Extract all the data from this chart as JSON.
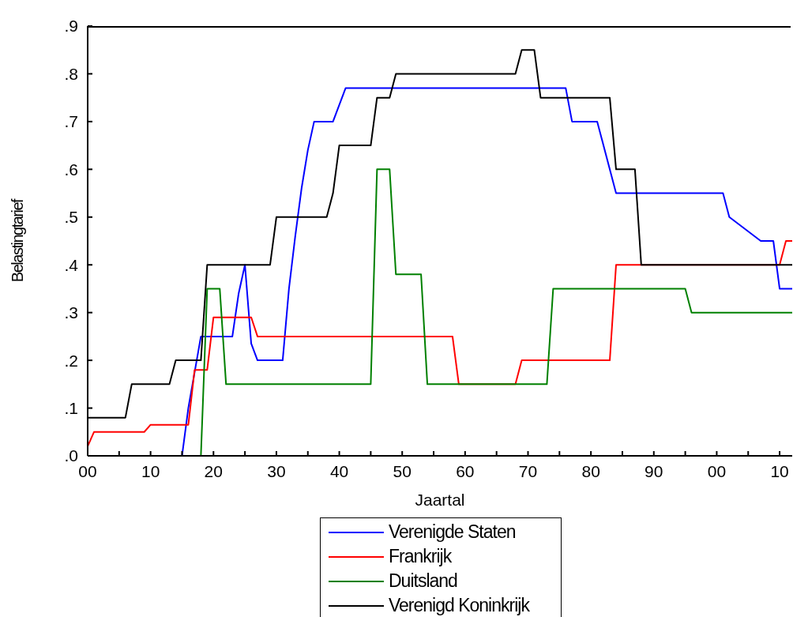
{
  "chart_data": {
    "type": "line",
    "xlabel": "Jaartal",
    "ylabel": "Belastingtarief",
    "xlim": [
      1900,
      2012
    ],
    "xticks": [
      {
        "value": 1900,
        "label": "00"
      },
      {
        "value": 1905,
        "label": null
      },
      {
        "value": 1910,
        "label": "10"
      },
      {
        "value": 1915,
        "label": null
      },
      {
        "value": 1920,
        "label": "20"
      },
      {
        "value": 1925,
        "label": null
      },
      {
        "value": 1930,
        "label": "30"
      },
      {
        "value": 1935,
        "label": null
      },
      {
        "value": 1940,
        "label": "40"
      },
      {
        "value": 1945,
        "label": null
      },
      {
        "value": 1950,
        "label": "50"
      },
      {
        "value": 1955,
        "label": null
      },
      {
        "value": 1960,
        "label": "60"
      },
      {
        "value": 1965,
        "label": null
      },
      {
        "value": 1970,
        "label": "70"
      },
      {
        "value": 1975,
        "label": null
      },
      {
        "value": 1980,
        "label": "80"
      },
      {
        "value": 1985,
        "label": null
      },
      {
        "value": 1990,
        "label": "90"
      },
      {
        "value": 1995,
        "label": null
      },
      {
        "value": 2000,
        "label": "00"
      },
      {
        "value": 2005,
        "label": null
      },
      {
        "value": 2010,
        "label": "10"
      }
    ],
    "ylim": [
      0,
      0.9
    ],
    "yticks": [
      {
        "value": 0,
        "label": ".0"
      },
      {
        "value": 0.1,
        "label": ".1"
      },
      {
        "value": 0.2,
        "label": ".2"
      },
      {
        "value": 0.3,
        "label": ".3"
      },
      {
        "value": 0.4,
        "label": ".4"
      },
      {
        "value": 0.5,
        "label": ".5"
      },
      {
        "value": 0.6,
        "label": ".6"
      },
      {
        "value": 0.7,
        "label": ".7"
      },
      {
        "value": 0.8,
        "label": ".8"
      },
      {
        "value": 0.9,
        "label": ".9"
      }
    ],
    "grid": false,
    "legend": "bottom",
    "marker": "none",
    "line_style": "solid",
    "series": [
      {
        "name": "Verenigde Staten",
        "color": "#0000ff",
        "x": [
          1900,
          1915,
          1916,
          1918,
          1923,
          1924,
          1925,
          1926,
          1927,
          1931,
          1932,
          1933,
          1934,
          1935,
          1936,
          1939,
          1941,
          1976,
          1977,
          1981,
          1984,
          2001,
          2002,
          2007,
          2009,
          2010,
          2012
        ],
        "values": [
          0,
          0,
          0.1,
          0.25,
          0.25,
          0.34,
          0.4,
          0.235,
          0.2,
          0.2,
          0.35,
          0.46,
          0.56,
          0.64,
          0.7,
          0.7,
          0.77,
          0.77,
          0.7,
          0.7,
          0.55,
          0.55,
          0.5,
          0.45,
          0.45,
          0.35,
          0.35
        ]
      },
      {
        "name": "Frankrijk",
        "color": "#ff0000",
        "x": [
          1900,
          1901,
          1909,
          1910,
          1916,
          1917,
          1919,
          1920,
          1926,
          1927,
          1958,
          1959,
          1968,
          1969,
          1983,
          1984,
          2010,
          2011,
          2012
        ],
        "values": [
          0.02,
          0.05,
          0.05,
          0.065,
          0.065,
          0.18,
          0.18,
          0.29,
          0.29,
          0.25,
          0.25,
          0.15,
          0.15,
          0.2,
          0.2,
          0.4,
          0.4,
          0.45,
          0.45
        ]
      },
      {
        "name": "Duitsland",
        "color": "#008000",
        "x": [
          1900,
          1918,
          1919,
          1921,
          1922,
          1945,
          1946,
          1948,
          1949,
          1953,
          1954,
          1973,
          1974,
          1995,
          1996,
          2012
        ],
        "values": [
          0,
          0,
          0.35,
          0.35,
          0.15,
          0.15,
          0.6,
          0.6,
          0.38,
          0.38,
          0.15,
          0.15,
          0.35,
          0.35,
          0.3,
          0.3
        ]
      },
      {
        "name": "Verenigd Koninkrijk",
        "color": "#000000",
        "x": [
          1900,
          1906,
          1907,
          1913,
          1914,
          1918,
          1919,
          1929,
          1930,
          1938,
          1939,
          1940,
          1945,
          1946,
          1948,
          1949,
          1968,
          1969,
          1971,
          1972,
          1983,
          1984,
          1987,
          1988,
          2012
        ],
        "values": [
          0.08,
          0.08,
          0.15,
          0.15,
          0.2,
          0.2,
          0.4,
          0.4,
          0.5,
          0.5,
          0.55,
          0.65,
          0.65,
          0.75,
          0.75,
          0.8,
          0.8,
          0.85,
          0.85,
          0.75,
          0.75,
          0.6,
          0.6,
          0.4,
          0.4
        ]
      }
    ]
  }
}
